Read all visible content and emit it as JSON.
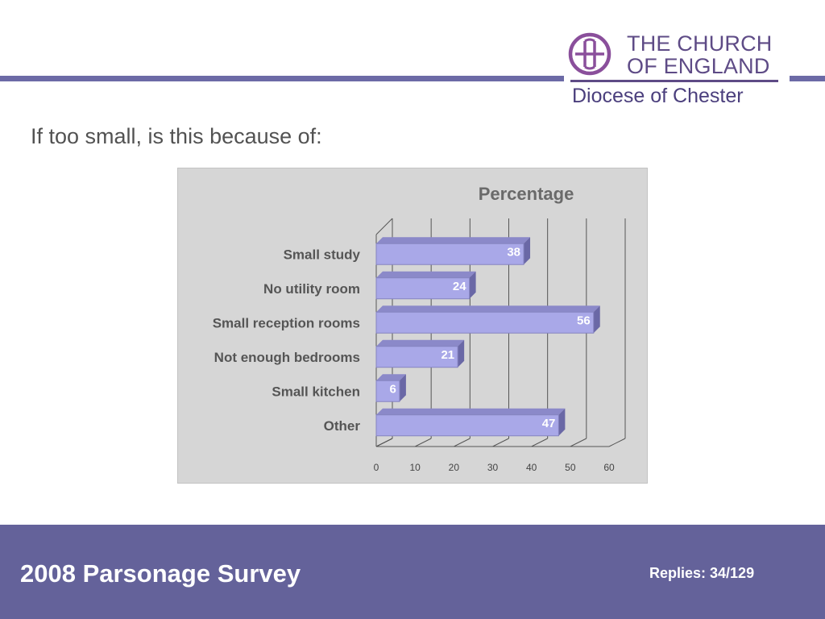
{
  "header": {
    "logo": {
      "line1": "THE CHURCH",
      "line2": "OF ENGLAND",
      "diocese": "Diocese of Chester"
    }
  },
  "slide": {
    "heading": "If too small, is this because of:"
  },
  "footer": {
    "title": "2008 Parsonage Survey",
    "replies": "Replies: 34/129"
  },
  "colors": {
    "accent": "#6c6aa6",
    "footer_bg": "#64629a",
    "logo": "#5e4b86",
    "bar_front": "#a9a8e8",
    "bar_top": "#8b89c9",
    "bar_side": "#6a68a6",
    "chart_bg": "#d6d6d6"
  },
  "chart_data": {
    "type": "bar",
    "orientation": "horizontal",
    "style": "3d",
    "title": "Percentage",
    "categories": [
      "Small study",
      "No utility room",
      "Small reception rooms",
      "Not enough bedrooms",
      "Small kitchen",
      "Other"
    ],
    "series": [
      {
        "values": [
          38,
          24,
          56,
          21,
          6,
          47
        ]
      }
    ],
    "data_labels": [
      "38",
      "24",
      "56",
      "21",
      "6",
      "47"
    ],
    "xlim": [
      0,
      60
    ],
    "xticks": [
      "0",
      "10",
      "20",
      "30",
      "40",
      "50",
      "60"
    ],
    "grid": true,
    "legend": false
  }
}
